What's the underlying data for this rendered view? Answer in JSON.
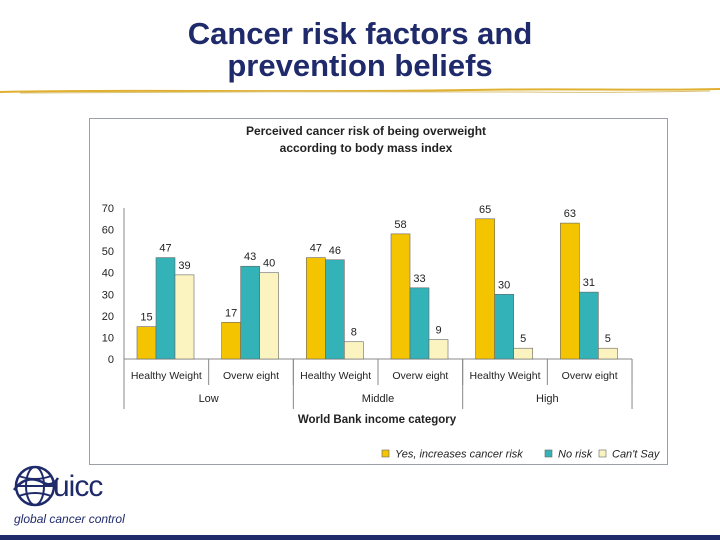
{
  "slide": {
    "title_line1": "Cancer risk factors and",
    "title_line2": "prevention beliefs"
  },
  "logo": {
    "wordmark": "uicc",
    "tagline": "global cancer control"
  },
  "colors": {
    "title": "#1f2a6b",
    "rule": "#e0b030",
    "yes": "#f5c400",
    "no": "#33b3b8",
    "cant": "#fbf4c0"
  },
  "chart_data": {
    "type": "bar",
    "title_line1": "Perceived cancer risk of being overweight",
    "title_line2": "according to body mass index",
    "xlabel": "World Bank income category",
    "ylim": [
      0,
      70
    ],
    "yticks": [
      "0",
      "10",
      "20",
      "30",
      "40",
      "50",
      "60",
      "70"
    ],
    "categories": [
      "Healthy Weight",
      "Overw eight",
      "Healthy Weight",
      "Overw eight",
      "Healthy Weight",
      "Overw eight"
    ],
    "groups": [
      "Low",
      "Middle",
      "High"
    ],
    "series": [
      {
        "name": "Yes, increases cancer risk",
        "values": [
          15,
          17,
          47,
          58,
          65,
          63
        ]
      },
      {
        "name": "No risk",
        "values": [
          47,
          43,
          46,
          33,
          30,
          31
        ]
      },
      {
        "name": "Can't Say",
        "values": [
          39,
          40,
          8,
          9,
          5,
          5
        ]
      }
    ],
    "legend_position": "bottom-right",
    "grid": false
  }
}
